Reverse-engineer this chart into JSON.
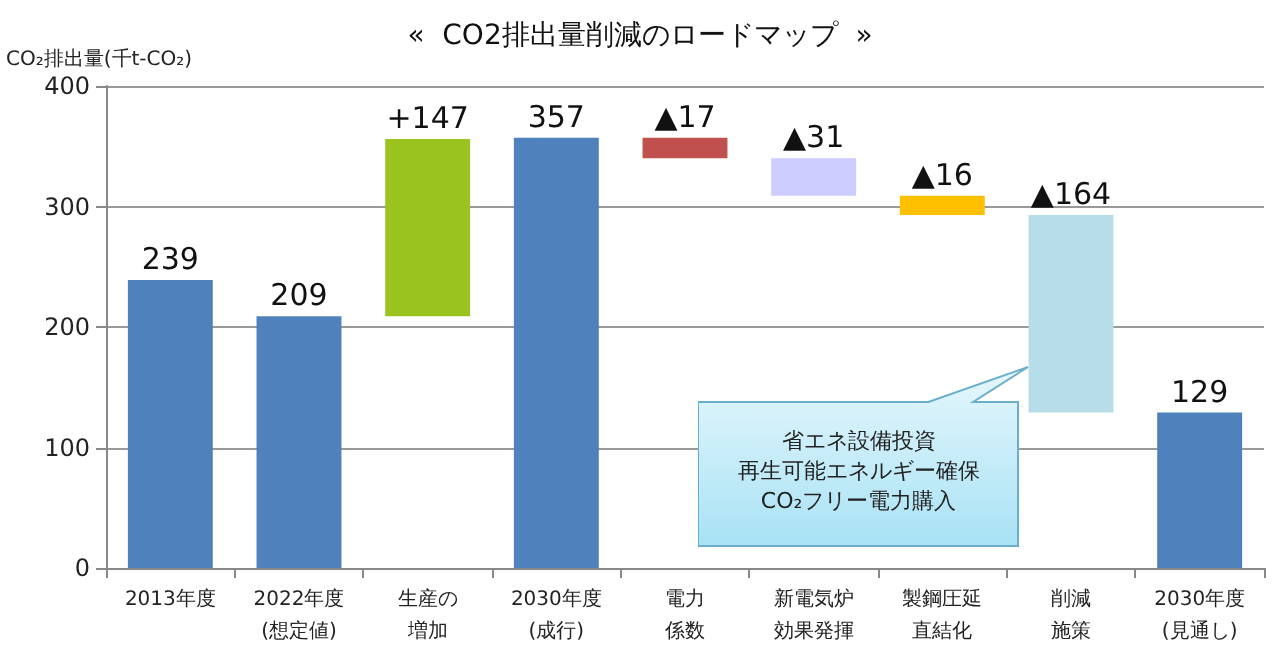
{
  "chart_data": {
    "type": "bar",
    "title": "«  CO2排出量削減のロードマップ  »",
    "ylabel": "CO₂排出量(千t-CO₂)",
    "categories": [
      "2013年度",
      "2022年度\n(想定値)",
      "生産の増加",
      "2030年度\n(成行)",
      "電力係数",
      "新電気炉効果発揮",
      "製鋼圧延直結化",
      "削減施策",
      "2030年度\n(見通し)"
    ],
    "values": [
      239,
      209,
      147,
      357,
      -17,
      -31,
      -16,
      -164,
      129
    ],
    "base": [
      0,
      0,
      209,
      0,
      357,
      340,
      309,
      293,
      0
    ],
    "colors": [
      "#4f81bd",
      "#4f81bd",
      "#9bc31f",
      "#4f81bd",
      "#c0504d",
      "#ccccff",
      "#ffc000",
      "#b7dde8",
      "#4f81bd"
    ],
    "value_labels": [
      "239",
      "209",
      "+147",
      "357",
      "▲17",
      "▲31",
      "▲16",
      "▲164",
      "129"
    ],
    "annotations": [
      "省エネ設備投資",
      "再生可能エネルギー確保",
      "CO₂フリー電力購入"
    ],
    "ylim": [
      0,
      400
    ],
    "yticks": [
      0,
      100,
      200,
      300,
      400
    ],
    "grid": "y"
  }
}
